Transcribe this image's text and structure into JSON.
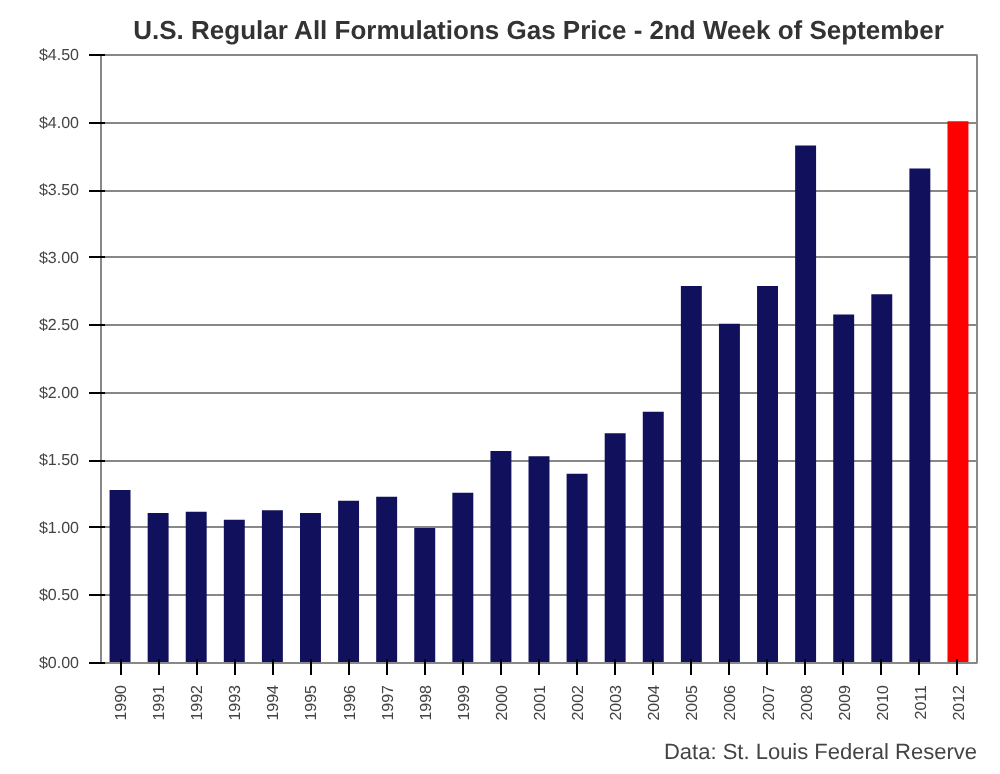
{
  "chart_data": {
    "type": "bar",
    "title": "U.S. Regular All Formulations Gas Price - 2nd Week of September",
    "categories": [
      "1990",
      "1991",
      "1992",
      "1993",
      "1994",
      "1995",
      "1996",
      "1997",
      "1998",
      "1999",
      "2000",
      "2001",
      "2002",
      "2003",
      "2004",
      "2005",
      "2006",
      "2007",
      "2008",
      "2009",
      "2010",
      "2011",
      "2012"
    ],
    "values": [
      1.28,
      1.11,
      1.12,
      1.06,
      1.13,
      1.11,
      1.2,
      1.23,
      1.0,
      1.26,
      1.57,
      1.53,
      1.4,
      1.7,
      1.86,
      2.79,
      2.51,
      2.79,
      3.83,
      2.58,
      2.73,
      3.66,
      4.01
    ],
    "colors": [
      "#10105c",
      "#10105c",
      "#10105c",
      "#10105c",
      "#10105c",
      "#10105c",
      "#10105c",
      "#10105c",
      "#10105c",
      "#10105c",
      "#10105c",
      "#10105c",
      "#10105c",
      "#10105c",
      "#10105c",
      "#10105c",
      "#10105c",
      "#10105c",
      "#10105c",
      "#10105c",
      "#10105c",
      "#10105c",
      "#ff0000"
    ],
    "ylim": [
      0,
      4.5
    ],
    "yticks": [
      {
        "value": 0,
        "label": "$0.00"
      },
      {
        "value": 0.5,
        "label": "$0.50"
      },
      {
        "value": 1,
        "label": "$1.00"
      },
      {
        "value": 1.5,
        "label": "$1.50"
      },
      {
        "value": 2,
        "label": "$2.00"
      },
      {
        "value": 2.5,
        "label": "$2.50"
      },
      {
        "value": 3,
        "label": "$3.00"
      },
      {
        "value": 3.5,
        "label": "$3.50"
      },
      {
        "value": 4,
        "label": "$4.00"
      },
      {
        "value": 4.5,
        "label": "$4.50"
      }
    ],
    "grid": "y",
    "annotations": [
      "Data: St. Louis Federal Reserve"
    ]
  }
}
